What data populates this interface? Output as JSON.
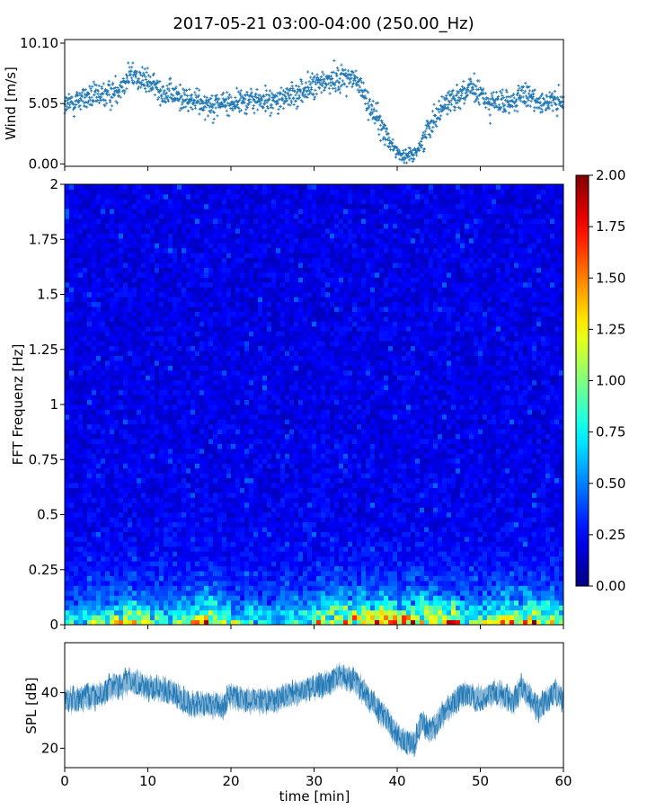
{
  "title": "2017-05-21 03:00-04:00 (250.00_Hz)",
  "chart_data": [
    {
      "panel": "wind",
      "type": "scatter",
      "title": "",
      "xlabel": "",
      "ylabel": "Wind [m/s]",
      "xlim": [
        0,
        60
      ],
      "ylim": [
        -0.2,
        10.4
      ],
      "yticks": [
        "0.00",
        "5.05",
        "10.10"
      ],
      "ytick_values": [
        0.0,
        5.05,
        10.1
      ],
      "xticks": [
        0,
        10,
        20,
        30,
        40,
        50,
        60
      ],
      "color": "#1f77b4",
      "marker": "+",
      "profile_x": [
        0,
        2,
        4,
        6,
        7,
        8,
        10,
        12,
        15,
        18,
        20,
        22,
        25,
        27,
        29,
        31,
        33,
        34,
        35,
        36,
        37,
        38,
        39,
        40,
        41,
        42,
        43,
        44,
        46,
        48,
        49,
        50,
        51,
        53,
        55,
        58,
        60
      ],
      "profile_y": [
        4.8,
        5.5,
        5.6,
        6.0,
        6.8,
        7.5,
        6.8,
        6.0,
        5.3,
        5.0,
        5.1,
        5.4,
        5.2,
        5.6,
        6.2,
        6.8,
        7.2,
        7.3,
        7.0,
        5.8,
        4.5,
        3.2,
        2.0,
        1.0,
        0.6,
        0.8,
        1.8,
        3.5,
        5.2,
        6.0,
        6.2,
        5.8,
        5.2,
        5.0,
        5.6,
        5.2,
        5.0
      ],
      "point_count": 1500,
      "spread": 0.9
    },
    {
      "panel": "spectrogram",
      "type": "heatmap",
      "title": "",
      "xlabel": "",
      "ylabel": "FFT Frequenz [Hz]",
      "xlim": [
        0,
        60
      ],
      "ylim": [
        0,
        2
      ],
      "yticks": [
        "0",
        "0.25",
        "0.5",
        "0.75",
        "1",
        "1.25",
        "1.5",
        "1.75",
        "2"
      ],
      "ytick_values": [
        0,
        0.25,
        0.5,
        0.75,
        1.0,
        1.25,
        1.5,
        1.75,
        2.0
      ],
      "colormap": "jet",
      "colorbar": {
        "range": [
          0,
          2
        ],
        "ticks": [
          "0.00",
          "0.25",
          "0.50",
          "0.75",
          "1.00",
          "1.25",
          "1.50",
          "1.75",
          "2.00"
        ],
        "tick_values": [
          0,
          0.25,
          0.5,
          0.75,
          1.0,
          1.25,
          1.5,
          1.75,
          2.0
        ]
      },
      "background_level": 0.2,
      "low_frequency_peak": 1.4,
      "hot_times": [
        8,
        17,
        32,
        35,
        38,
        40,
        42,
        44,
        46,
        53,
        57
      ]
    },
    {
      "panel": "spl",
      "type": "line",
      "title": "",
      "xlabel": "time [min]",
      "ylabel": "SPL [dB]",
      "xlim": [
        0,
        60
      ],
      "ylim": [
        13,
        58
      ],
      "yticks": [
        "20",
        "40"
      ],
      "ytick_values": [
        20,
        40
      ],
      "xticks": [
        "0",
        "10",
        "20",
        "30",
        "40",
        "50",
        "60"
      ],
      "xtick_values": [
        0,
        10,
        20,
        30,
        40,
        50,
        60
      ],
      "color": "#1f77b4",
      "x": [
        0,
        2,
        4,
        6,
        7,
        8,
        10,
        12,
        14,
        15,
        17,
        19,
        20,
        22,
        25,
        28,
        30,
        32,
        33,
        34,
        35,
        36,
        38,
        40,
        41,
        42,
        43,
        44,
        46,
        48,
        50,
        52,
        54,
        55,
        57,
        59,
        60
      ],
      "y": [
        37,
        38,
        39,
        42,
        43,
        44,
        42,
        41,
        38,
        36,
        36,
        35,
        39,
        37,
        37,
        40,
        42,
        44,
        46,
        45,
        44,
        40,
        33,
        25,
        22,
        21,
        30,
        26,
        34,
        40,
        38,
        40,
        37,
        42,
        34,
        40,
        38
      ],
      "band": 4
    }
  ]
}
